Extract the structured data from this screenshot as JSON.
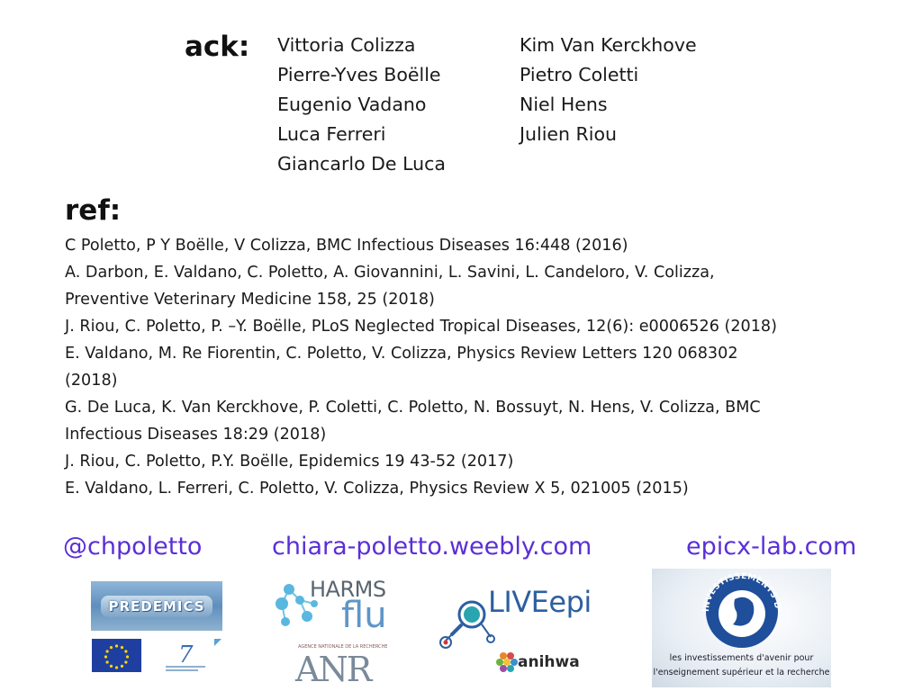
{
  "ack": {
    "label": "ack:",
    "col1": [
      "Vittoria Colizza",
      "Pierre-Yves Boëlle",
      "Eugenio Vadano",
      "Luca Ferreri",
      "Giancarlo De Luca"
    ],
    "col2": [
      "Kim Van Kerckhove",
      "Pietro Coletti",
      "Niel Hens",
      "Julien Riou"
    ]
  },
  "ref": {
    "label": "ref:",
    "lines": [
      "C Poletto, P Y Boëlle, V Colizza, BMC Infectious Diseases 16:448 (2016)",
      "A. Darbon, E. Valdano, C. Poletto, A. Giovannini, L. Savini, L. Candeloro, V. Colizza,",
      "Preventive Veterinary Medicine 158, 25 (2018)",
      "J. Riou, C. Poletto, P. –Y. Boëlle, PLoS Neglected Tropical Diseases, 12(6): e0006526 (2018)",
      "E. Valdano, M. Re Fiorentin, C. Poletto, V. Colizza, Physics Review Letters 120 068302",
      "(2018)",
      "G. De Luca, K. Van Kerckhove, P. Coletti, C. Poletto, N. Bossuyt, N. Hens, V. Colizza, BMC",
      "Infectious Diseases 18:29 (2018)",
      "J. Riou, C. Poletto, P.Y. Boëlle, Epidemics 19 43-52 (2017)",
      "E. Valdano, L. Ferreri, C. Poletto, V. Colizza, Physics Review X 5, 021005 (2015)"
    ]
  },
  "links": {
    "twitter": "@chpoletto",
    "website": "chiara-poletto.weebly.com",
    "lab": "epicx-lab.com"
  },
  "logos": {
    "predemics": "PREDEMICS",
    "harms_top": "HARMS",
    "harms_bottom": "flu",
    "anr": "ANR",
    "anr_small": "AGENCE NATIONALE DE LA RECHERCHE",
    "liveepi": "LIVEepi",
    "anihwa": "anihwa",
    "invest_ring": "INVESTISSEMENTS D'AVENIR",
    "invest_line1": "les investissements d'avenir pour",
    "invest_line2": "l'enseignement supérieur et la recherche"
  },
  "colors": {
    "link": "#5a2fd6",
    "text": "#1a1a1a"
  }
}
